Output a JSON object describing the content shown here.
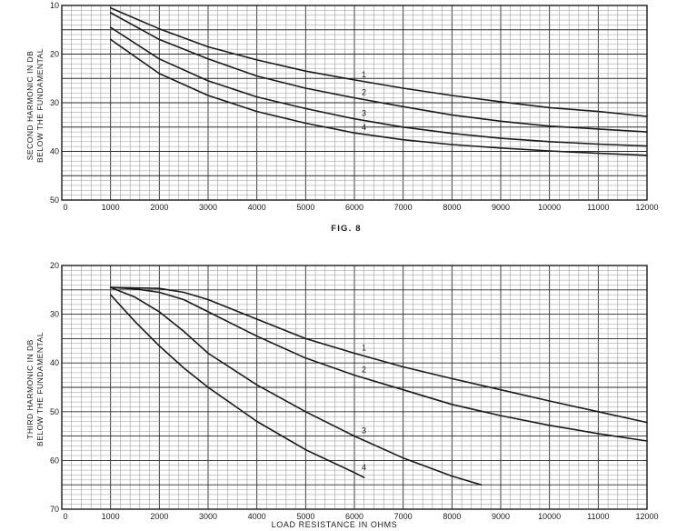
{
  "figure_caption": "FIG. 8",
  "colors": {
    "ink": "#1a1a1a",
    "grid_minor": "#8c8c8c",
    "grid_major": "#2a2a2a",
    "paper": "#ffffff"
  },
  "chart_data": [
    {
      "type": "line",
      "ylabel_line1": "SECOND HARMONIC IN DB",
      "ylabel_line2": "BELOW THE FUNDAMENTAL",
      "xlabel": "",
      "xlim": [
        0,
        12000
      ],
      "ylim": [
        10,
        50
      ],
      "y_inverted": true,
      "grid": true,
      "x_ticks": [
        "0",
        "1000",
        "2000",
        "3000",
        "4000",
        "5000",
        "6000",
        "7000",
        "8000",
        "9000",
        "10000",
        "11000",
        "12000"
      ],
      "y_ticks": [
        "10",
        "20",
        "30",
        "40",
        "50"
      ],
      "series": [
        {
          "name": "1",
          "x": [
            1000,
            2000,
            3000,
            4000,
            5000,
            6000,
            7000,
            8000,
            9000,
            10000,
            11000,
            12000
          ],
          "y": [
            10.5,
            14.8,
            18.5,
            21.2,
            23.5,
            25.3,
            27.0,
            28.5,
            29.8,
            31.0,
            31.8,
            32.8
          ]
        },
        {
          "name": "2",
          "x": [
            1000,
            2000,
            3000,
            4000,
            5000,
            6000,
            7000,
            8000,
            9000,
            10000,
            11000,
            12000
          ],
          "y": [
            11.5,
            17.0,
            21.0,
            24.5,
            27.0,
            29.0,
            30.8,
            32.5,
            33.8,
            34.8,
            35.4,
            36.0
          ]
        },
        {
          "name": "3",
          "x": [
            1000,
            2000,
            3000,
            4000,
            5000,
            6000,
            7000,
            8000,
            9000,
            10000,
            11000,
            12000
          ],
          "y": [
            14.5,
            21.0,
            25.5,
            28.8,
            31.2,
            33.3,
            35.0,
            36.3,
            37.3,
            38.0,
            38.5,
            38.9
          ]
        },
        {
          "name": "4",
          "x": [
            1000,
            2000,
            3000,
            4000,
            5000,
            6000,
            7000,
            8000,
            9000,
            10000,
            11000,
            12000
          ],
          "y": [
            17.0,
            24.0,
            28.5,
            31.8,
            34.2,
            36.2,
            37.6,
            38.6,
            39.3,
            39.9,
            40.4,
            40.8
          ]
        }
      ]
    },
    {
      "type": "line",
      "ylabel_line1": "THIRD HARMONIC IN DB",
      "ylabel_line2": "BELOW THE FUNDAMENTAL",
      "xlabel": "LOAD RESISTANCE IN OHMS",
      "xlim": [
        0,
        12000
      ],
      "ylim": [
        20,
        70
      ],
      "y_inverted": true,
      "grid": true,
      "x_ticks": [
        "0",
        "1000",
        "2000",
        "3000",
        "4000",
        "5000",
        "6000",
        "7000",
        "8000",
        "9000",
        "10000",
        "11000",
        "12000"
      ],
      "y_ticks": [
        "20",
        "30",
        "40",
        "50",
        "60",
        "70"
      ],
      "series": [
        {
          "name": "1",
          "x": [
            1000,
            2000,
            2500,
            3000,
            4000,
            5000,
            6000,
            7000,
            8000,
            9000,
            10000,
            11000,
            12000
          ],
          "y": [
            24.5,
            24.7,
            25.5,
            27.0,
            31.0,
            35.0,
            38.0,
            40.8,
            43.2,
            45.5,
            47.8,
            50.0,
            52.2
          ]
        },
        {
          "name": "2",
          "x": [
            1000,
            1500,
            2000,
            2500,
            3000,
            4000,
            5000,
            6000,
            7000,
            8000,
            9000,
            10000,
            11000,
            12000
          ],
          "y": [
            24.5,
            24.8,
            25.5,
            27.0,
            29.5,
            34.5,
            39.0,
            42.5,
            45.5,
            48.5,
            50.8,
            52.8,
            54.5,
            56.0
          ]
        },
        {
          "name": "3",
          "x": [
            1000,
            1500,
            2000,
            2500,
            3000,
            4000,
            5000,
            6000,
            7000,
            8000,
            8600
          ],
          "y": [
            24.5,
            26.5,
            29.5,
            33.5,
            38.0,
            44.5,
            50.0,
            55.0,
            59.5,
            63.2,
            65.0
          ]
        },
        {
          "name": "4",
          "x": [
            1000,
            1500,
            2000,
            2500,
            3000,
            4000,
            5000,
            6000,
            6200
          ],
          "y": [
            26.0,
            31.5,
            36.5,
            41.0,
            45.0,
            52.0,
            57.8,
            62.5,
            63.5
          ]
        }
      ]
    }
  ]
}
